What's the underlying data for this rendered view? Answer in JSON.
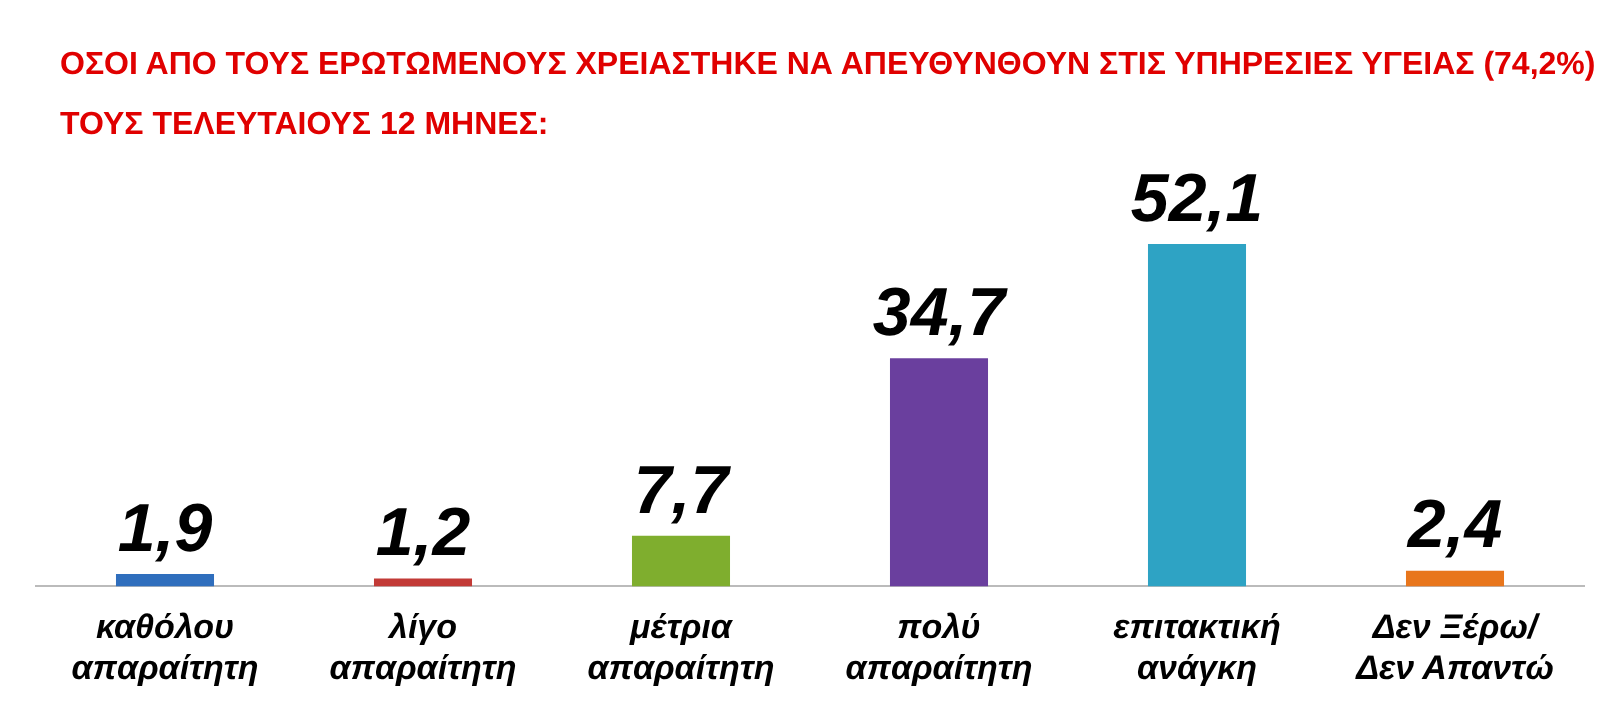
{
  "chart_data": {
    "type": "bar",
    "title": "ΟΣΟΙ ΑΠΟ ΤΟΥΣ ΕΡΩΤΩΜΕΝΟΥΣ ΧΡΕΙΑΣΤΗΚΕ ΝΑ ΑΠΕΥΘΥΝΘΟΥΝ ΣΤΙΣ ΥΠΗΡΕΣΙΕΣ ΥΓΕΙΑΣ (74,2%) ΤΟΥΣ ΤΕΛΕΥΤΑΙΟΥΣ 12 ΜΗΝΕΣ:",
    "categories": [
      "καθόλου απαραίτητη",
      "λίγο απαραίτητη",
      "μέτρια απαραίτητη",
      "πολύ απαραίτητη",
      "επιτακτική ανάγκη",
      "Δεν Ξέρω/ Δεν Απαντώ"
    ],
    "values": [
      1.9,
      1.2,
      7.7,
      34.7,
      52.1,
      2.4
    ],
    "colors": [
      "#2f6ebd",
      "#c23a36",
      "#7fae2e",
      "#6a3f9e",
      "#2ea3c4",
      "#e8761c"
    ],
    "value_labels": [
      "1,9",
      "1,2",
      "7,7",
      "34,7",
      "52,1",
      "2,4"
    ],
    "grid": false,
    "legend": false
  }
}
